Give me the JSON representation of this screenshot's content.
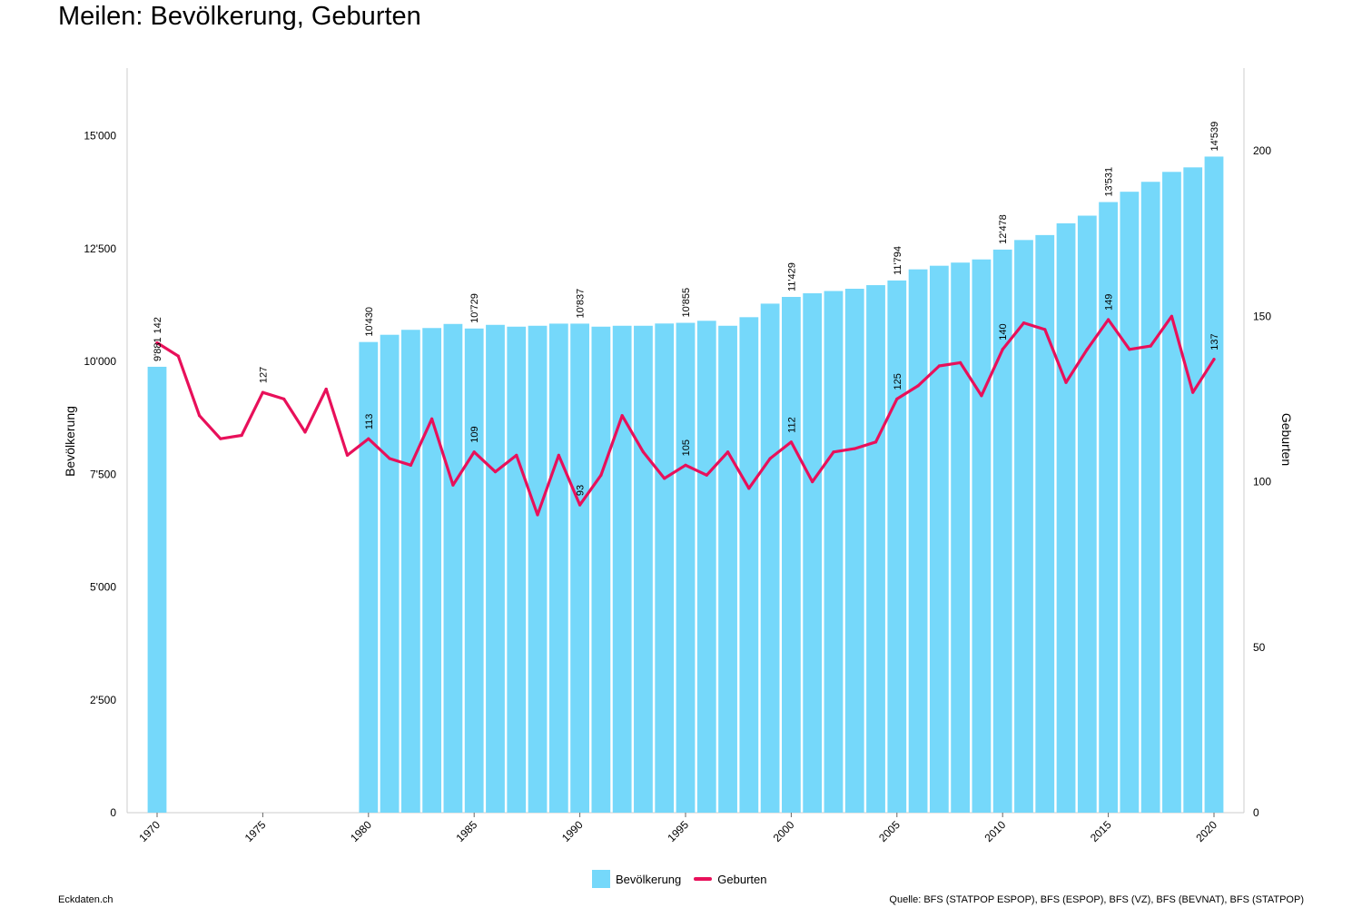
{
  "title": "Meilen: Bevölkerung, Geburten",
  "footer": {
    "left": "Eckdaten.ch",
    "right": "Quelle: BFS (STATPOP ESPOP), BFS (ESPOP), BFS (VZ), BFS (BEVNAT), BFS (STATPOP)"
  },
  "legend": {
    "bar": "Bevölkerung",
    "line": "Geburten"
  },
  "colors": {
    "bar": "#75d8fa",
    "line": "#e8105a",
    "axis": "#cccccc"
  },
  "chart_data": {
    "type": "bar",
    "xlabel": "",
    "ylabel": "Bevölkerung",
    "y2label": "Geburten",
    "ylim": [
      0,
      16500
    ],
    "y2lim": [
      0,
      225
    ],
    "y_ticks": [
      {
        "v": 0,
        "label": "0"
      },
      {
        "v": 2500,
        "label": "2'500"
      },
      {
        "v": 5000,
        "label": "5'000"
      },
      {
        "v": 7500,
        "label": "7'500"
      },
      {
        "v": 10000,
        "label": "10'000"
      },
      {
        "v": 12500,
        "label": "12'500"
      },
      {
        "v": 15000,
        "label": "15'000"
      }
    ],
    "y2_ticks": [
      {
        "v": 0,
        "label": "0"
      },
      {
        "v": 50,
        "label": "50"
      },
      {
        "v": 100,
        "label": "100"
      },
      {
        "v": 150,
        "label": "150"
      },
      {
        "v": 200,
        "label": "200"
      }
    ],
    "x_ticks": [
      1970,
      1975,
      1980,
      1985,
      1990,
      1995,
      2000,
      2005,
      2010,
      2015,
      2020
    ],
    "years": [
      1970,
      1971,
      1972,
      1973,
      1974,
      1975,
      1976,
      1977,
      1978,
      1979,
      1980,
      1981,
      1982,
      1983,
      1984,
      1985,
      1986,
      1987,
      1988,
      1989,
      1990,
      1991,
      1992,
      1993,
      1994,
      1995,
      1996,
      1997,
      1998,
      1999,
      2000,
      2001,
      2002,
      2003,
      2004,
      2005,
      2006,
      2007,
      2008,
      2009,
      2010,
      2011,
      2012,
      2013,
      2014,
      2015,
      2016,
      2017,
      2018,
      2019,
      2020
    ],
    "series": [
      {
        "name": "Bevölkerung",
        "kind": "bar",
        "values": [
          9881,
          null,
          null,
          null,
          null,
          null,
          null,
          null,
          null,
          null,
          10430,
          10590,
          10700,
          10740,
          10830,
          10729,
          10810,
          10770,
          10790,
          10837,
          10837,
          10770,
          10790,
          10790,
          10840,
          10855,
          10900,
          10790,
          10980,
          11280,
          11429,
          11510,
          11560,
          11610,
          11690,
          11794,
          12040,
          12120,
          12190,
          12260,
          12478,
          12690,
          12800,
          13060,
          13230,
          13531,
          13760,
          13980,
          14200,
          14300,
          14539
        ],
        "labels": {
          "1970": "9'881",
          "1980": "10'430",
          "1985": "10'729",
          "1990": "10'837",
          "1995": "10'855",
          "2000": "11'429",
          "2005": "11'794",
          "2010": "12'478",
          "2015": "13'531",
          "2020": "14'539"
        }
      },
      {
        "name": "Geburten",
        "kind": "line",
        "axis": "right",
        "values": [
          142,
          138,
          120,
          113,
          114,
          127,
          125,
          115,
          128,
          108,
          113,
          107,
          105,
          119,
          99,
          109,
          103,
          108,
          90,
          108,
          93,
          102,
          120,
          109,
          101,
          105,
          102,
          109,
          98,
          107,
          112,
          100,
          109,
          110,
          112,
          125,
          129,
          135,
          136,
          126,
          140,
          148,
          146,
          130,
          140,
          149,
          140,
          141,
          150,
          127,
          137
        ],
        "labels": {
          "1970": "142",
          "1975": "127",
          "1980": "113",
          "1985": "109",
          "1990": "93",
          "1995": "105",
          "2000": "112",
          "2005": "125",
          "2010": "140",
          "2015": "149",
          "2020": "137"
        }
      }
    ]
  }
}
